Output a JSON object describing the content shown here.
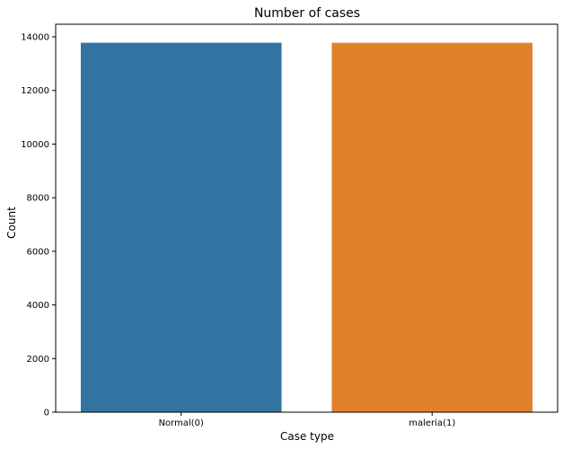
{
  "chart_data": {
    "type": "bar",
    "title": "Number of cases",
    "xlabel": "Case type",
    "ylabel": "Count",
    "categories": [
      "Normal(0)",
      "maleria(1)"
    ],
    "values": [
      13779,
      13779
    ],
    "colors": [
      "#3274a1",
      "#e1812c"
    ],
    "ylim": [
      0,
      14470
    ],
    "yticks": [
      0,
      2000,
      4000,
      6000,
      8000,
      10000,
      12000,
      14000
    ],
    "grid": false,
    "legend": "none"
  }
}
